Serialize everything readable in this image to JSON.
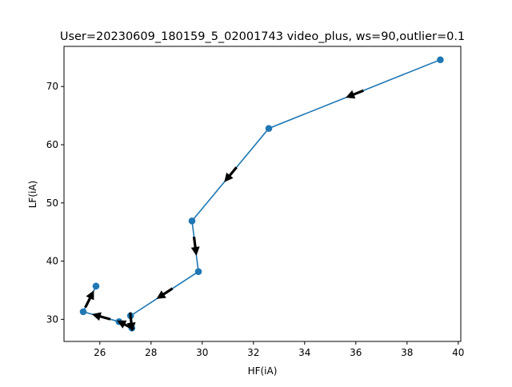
{
  "chart_data": {
    "type": "line",
    "title": "User=20230609_180159_5_02001743 video_plus, ws=90,outlier=0.1",
    "xlabel": "HF(iA)",
    "ylabel": "LF(iA)",
    "xlim": [
      24.6,
      40.1
    ],
    "ylim": [
      26.2,
      76.9
    ],
    "xticks": [
      26,
      28,
      30,
      32,
      34,
      36,
      38,
      40
    ],
    "yticks": [
      30,
      40,
      50,
      60,
      70
    ],
    "grid": false,
    "legend": "none",
    "series": [
      {
        "x": [
          39.3,
          32.6,
          29.6,
          29.85,
          27.2,
          27.25,
          26.75,
          25.35,
          25.85
        ],
        "y": [
          74.6,
          62.8,
          46.9,
          38.2,
          30.6,
          28.5,
          29.6,
          31.3,
          35.7
        ]
      }
    ],
    "colors": {
      "line": "#1f77b4",
      "marker": "#1f77b4",
      "arrow": "#000000"
    }
  }
}
